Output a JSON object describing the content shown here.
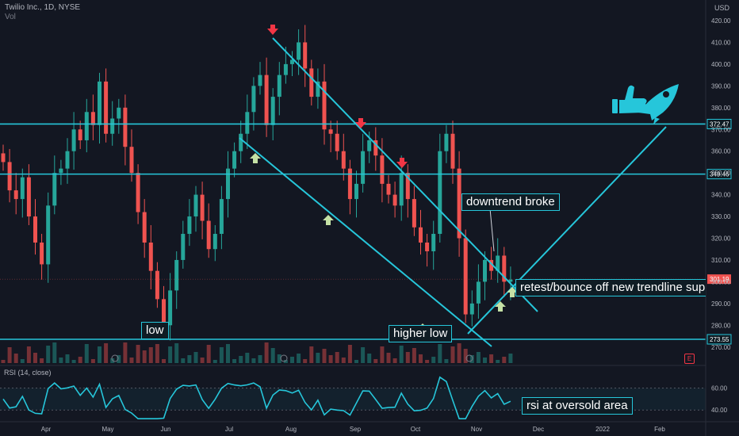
{
  "header": {
    "symbol": "Twilio Inc., 1D, NYSE",
    "volume_label": "Vol",
    "currency": "USD"
  },
  "rsi_panel": {
    "title": "RSI (14, close)",
    "ticks": [
      "60.00",
      "40.00"
    ]
  },
  "annotations": {
    "low": "low",
    "higher_low": "higher low",
    "downtrend": "downtrend broke",
    "retest": "retest/bounce off new trendline support",
    "rsi_note": "rsi at oversold area"
  },
  "colors": {
    "up": "#26a69a",
    "down": "#ef5350",
    "trendline": "#26c6da",
    "background": "#131722",
    "arrow_down": "#f23645",
    "arrow_up": "#c5e1a5"
  },
  "chart_data": {
    "type": "candlestick",
    "price_axis_ticks": [
      420,
      410,
      400,
      390,
      380,
      370,
      360,
      350,
      340,
      330,
      320,
      310,
      300,
      290,
      280,
      270
    ],
    "x_labels": [
      "Apr",
      "May",
      "Jun",
      "Jul",
      "Aug",
      "Sep",
      "Oct",
      "Nov",
      "Dec",
      "2022",
      "Feb"
    ],
    "horizontal_levels": [
      {
        "label": "372.47",
        "value": 372.47
      },
      {
        "label": "349.46",
        "value": 349.46
      },
      {
        "label": "273.55",
        "value": 273.55
      }
    ],
    "current_price": {
      "label": "301.19",
      "value": 301.19
    },
    "series": [
      {
        "name": "close",
        "values": [
          355,
          342,
          338,
          348,
          330,
          318,
          308,
          335,
          350,
          352,
          360,
          370,
          365,
          378,
          372,
          392,
          368,
          375,
          380,
          362,
          350,
          332,
          318,
          305,
          292,
          280,
          296,
          310,
          322,
          330,
          340,
          328,
          315,
          322,
          338,
          352,
          360,
          368,
          378,
          390,
          395,
          372,
          385,
          395,
          400,
          402,
          410,
          398,
          385,
          392,
          370,
          368,
          360,
          352,
          338,
          345,
          360,
          365,
          358,
          345,
          340,
          335,
          350,
          338,
          325,
          318,
          314,
          322,
          360,
          368,
          352,
          320,
          285,
          290,
          300,
          310,
          305,
          312,
          300,
          301
        ]
      }
    ]
  }
}
